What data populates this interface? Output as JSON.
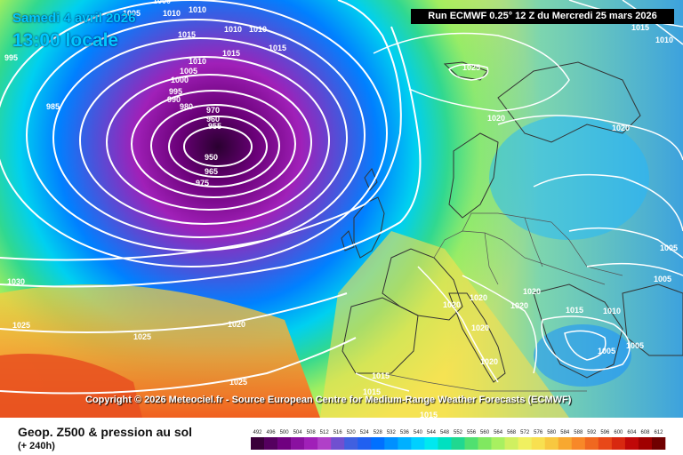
{
  "header": {
    "date": "Samedi 4 avril 2026",
    "time": "13:00 locale",
    "run": "Run ECMWF 0.25° 12 Z du Mercredi 25 mars 2026"
  },
  "copyright": "Copyright © 2026 Meteociel.fr - Source European Centre for Medium-Range Weather Forecasts (ECMWF)",
  "legend": {
    "title": "Geop. Z500 & pression au sol",
    "subtitle": "(+ 240h)",
    "ticks": [
      "492",
      "496",
      "500",
      "504",
      "508",
      "512",
      "516",
      "520",
      "524",
      "528",
      "532",
      "536",
      "540",
      "544",
      "548",
      "552",
      "556",
      "560",
      "564",
      "568",
      "572",
      "576",
      "580",
      "584",
      "588",
      "592",
      "596",
      "600",
      "604",
      "608",
      "612"
    ],
    "colors": [
      "#3a003a",
      "#55005f",
      "#700080",
      "#8a10a0",
      "#a020b8",
      "#b040c8",
      "#7050d0",
      "#4060e0",
      "#2060f0",
      "#0070ff",
      "#0090ff",
      "#00b0ff",
      "#00d0ff",
      "#00e8f0",
      "#00e0c0",
      "#20d890",
      "#50e070",
      "#80e860",
      "#a8f060",
      "#d0f060",
      "#f0f060",
      "#f8e050",
      "#f8c840",
      "#f8a830",
      "#f88828",
      "#f06820",
      "#e84818",
      "#d82810",
      "#c00808",
      "#a00000",
      "#700000"
    ]
  },
  "isobars": {
    "l1000": "1000",
    "l1005a": "1005",
    "l1010a": "1010",
    "l1010b": "1010",
    "l1015a": "1015",
    "l1015b": "1015",
    "l1010c": "1010",
    "l1015c": "1015",
    "l995a": "995",
    "l985": "985",
    "l1010d": "1010",
    "l1005b": "1005",
    "l1000b": "1000",
    "l995b": "995",
    "l990": "990",
    "l980": "980",
    "l970": "970",
    "l960": "960",
    "l955": "955",
    "l950": "950",
    "l965": "965",
    "l975": "975",
    "l1025a": "1025",
    "l1020a": "1020",
    "l1020b": "1020",
    "l1015d": "1015",
    "l1010e": "1010",
    "l1030": "1030",
    "l1025b": "1025",
    "l1025c": "1025",
    "l1025d": "1025",
    "l1020c": "1020",
    "l1020d": "1020",
    "l1020e": "1020",
    "l1020f": "1020",
    "l1020g": "1020",
    "l1020h": "1020",
    "l1020i": "1020",
    "l1015e": "1015",
    "l1015f": "1015",
    "l1015g": "1015",
    "l1015h": "1015",
    "l1010f": "1010",
    "l1005c": "1005",
    "l1005d": "1005",
    "l1005e": "1005",
    "l1005f": "1005",
    "l1010g": "1010"
  }
}
